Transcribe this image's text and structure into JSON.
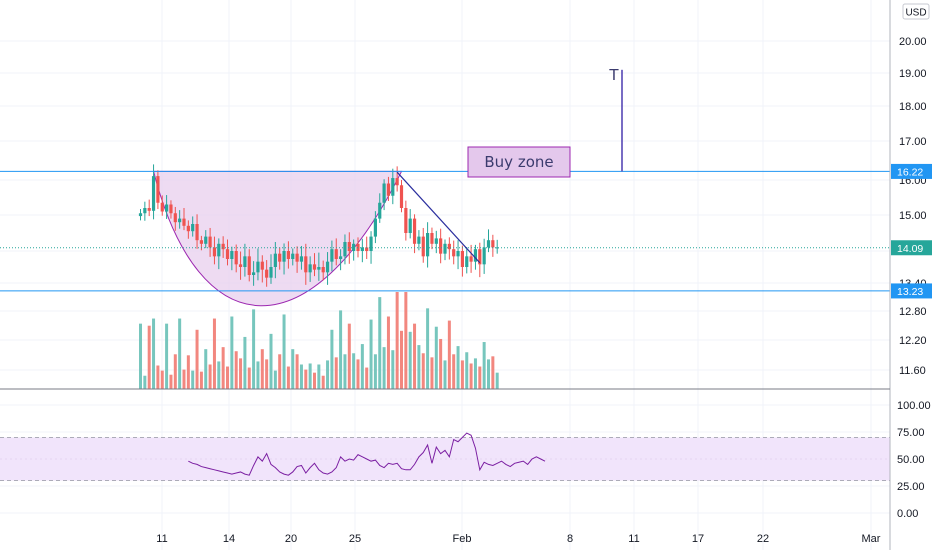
{
  "currency_button": "USD",
  "colors": {
    "up": "#26a69a",
    "down": "#ef5350",
    "up_volume": "#77c6bd",
    "down_volume": "#f2877f",
    "level_line": "#2196f3",
    "cup_fill": "#e8cfee",
    "cup_stroke": "#9c27b0",
    "trendline": "#2a2e9e",
    "rsi_line": "#7b1fa2",
    "rsi_band": "#f1e4fb",
    "buy_zone_fill": "#e4c8ec",
    "buy_zone_stroke": "#9c27b0"
  },
  "chart_data": [
    {
      "type": "candlestick",
      "title": "",
      "currency": "USD",
      "x_ticks": [
        "11",
        "14",
        "20",
        "25",
        "Feb",
        "8",
        "11",
        "17",
        "22",
        "Mar"
      ],
      "y_ticks": [
        "20.00",
        "19.00",
        "18.00",
        "17.00",
        "16.00",
        "15.00",
        "14.00",
        "13.40",
        "12.80",
        "12.20",
        "11.60"
      ],
      "price_markers": [
        {
          "value": "16.22",
          "kind": "resistance line"
        },
        {
          "value": "14.09",
          "kind": "last price"
        },
        {
          "value": "13.23",
          "kind": "support line"
        }
      ],
      "annotations": {
        "buy_zone_label": "Buy zone",
        "target_label": "T",
        "target_value": 19.1
      },
      "series": {
        "close": [
          15.05,
          15.2,
          15.12,
          16.1,
          15.35,
          15.1,
          15.3,
          15.05,
          14.8,
          14.9,
          14.7,
          14.55,
          14.75,
          14.3,
          14.2,
          14.4,
          14.1,
          13.9,
          14.2,
          14.05,
          13.85,
          14.0,
          13.75,
          13.7,
          13.9,
          13.55,
          13.6,
          13.8,
          13.65,
          13.5,
          13.7,
          13.95,
          13.8,
          14.0,
          13.85,
          13.95,
          13.8,
          13.9,
          13.6,
          13.75,
          13.65,
          13.7,
          13.6,
          13.8,
          14.05,
          13.85,
          13.9,
          14.25,
          14.0,
          14.2,
          14.0,
          14.1,
          14.0,
          14.4,
          14.9,
          15.35,
          15.9,
          15.55,
          16.05,
          15.85,
          15.2,
          14.5,
          14.9,
          14.2,
          14.4,
          13.9,
          14.5,
          14.2,
          14.35,
          13.95,
          14.2,
          14.05,
          13.9,
          14.0,
          13.7,
          13.9,
          13.8,
          14.05,
          13.75,
          14.1,
          14.3,
          14.1,
          14.1
        ],
        "volume": [
          3200000,
          650000,
          3100000,
          3450000,
          1150000,
          900000,
          3200000,
          700000,
          1700000,
          3450000,
          950000,
          1650000,
          900000,
          2900000,
          850000,
          1950000,
          1200000,
          3450000,
          1350000,
          2050000,
          1100000,
          3550000,
          1850000,
          1500000,
          2550000,
          1050000,
          3900000,
          1350000,
          1950000,
          1450000,
          2700000,
          900000,
          1700000,
          3650000,
          1100000,
          1950000,
          1700000,
          1200000,
          950000,
          1250000,
          800000,
          1200000,
          650000,
          1400000,
          2900000,
          1550000,
          3850000,
          1700000,
          3200000,
          1750000,
          1450000,
          2200000,
          1050000,
          3400000,
          1700000,
          4500000,
          2050000,
          3550000,
          1900000,
          4750000,
          2850000,
          4750000,
          2800000,
          3200000,
          2150000,
          1750000,
          3950000,
          1550000,
          3050000,
          2450000,
          1400000,
          3350000,
          1700000,
          2100000,
          1400000,
          1800000,
          1250000,
          1500000,
          1100000,
          2300000,
          1450000,
          1600000,
          800000
        ]
      }
    },
    {
      "type": "line",
      "title": "",
      "y_ticks": [
        "100.00",
        "75.00",
        "50.00",
        "25.00",
        "0.00"
      ],
      "band": [
        30,
        70
      ],
      "values": [
        48,
        46,
        45,
        43,
        42,
        41,
        40,
        39,
        38,
        37,
        36,
        37,
        38,
        36,
        35,
        44,
        52,
        48,
        55,
        45,
        42,
        38,
        36,
        35,
        38,
        43,
        44,
        37,
        42,
        46,
        40,
        37,
        36,
        38,
        42,
        52,
        48,
        50,
        49,
        54,
        52,
        50,
        48,
        49,
        44,
        42,
        46,
        45,
        46,
        41,
        40,
        40,
        45,
        52,
        56,
        63,
        46,
        61,
        55,
        58,
        52,
        68,
        66,
        70,
        74,
        72,
        60,
        40,
        47,
        45,
        44,
        46,
        48,
        45,
        43,
        46,
        47,
        48,
        45,
        50,
        52,
        50,
        48
      ]
    }
  ]
}
